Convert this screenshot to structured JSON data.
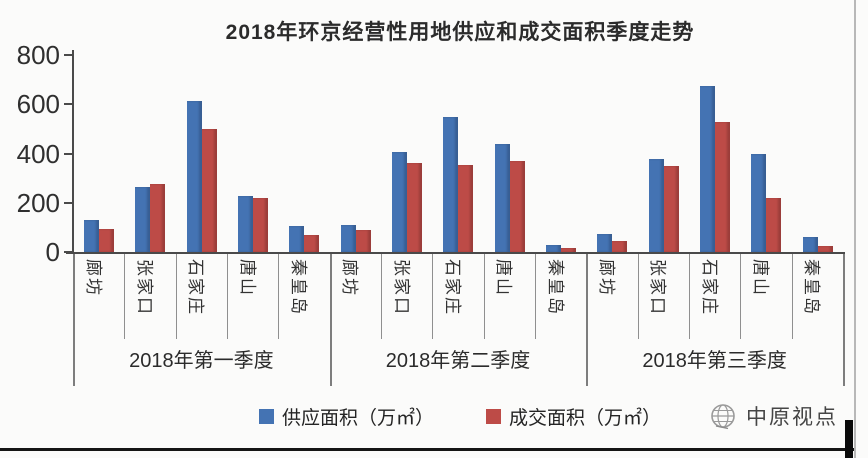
{
  "title": "2018年环京经营性用地供应和成交面积季度走势",
  "y_axis": {
    "ticks": [
      800,
      600,
      400,
      200,
      0
    ]
  },
  "legend": {
    "supply_label": "供应面积（万㎡）",
    "deal_label": "成交面积（万㎡）"
  },
  "watermark": {
    "brand": "中原视点"
  },
  "colors": {
    "supply": "#4473b3",
    "deal": "#bd4b47",
    "axis": "#4a4a4a"
  },
  "chart_data": {
    "type": "bar",
    "title": "2018年环京经营性用地供应和成交面积季度走势",
    "groups": [
      "2018年第一季度",
      "2018年第二季度",
      "2018年第三季度"
    ],
    "categories": [
      "廊坊",
      "张家口",
      "石家庄",
      "唐山",
      "秦皇岛"
    ],
    "series": [
      {
        "name": "供应面积（万㎡）",
        "color": "#4473b3",
        "values": [
          [
            130,
            265,
            615,
            228,
            105
          ],
          [
            110,
            405,
            550,
            440,
            30
          ],
          [
            75,
            378,
            675,
            398,
            62
          ]
        ]
      },
      {
        "name": "成交面积（万㎡）",
        "color": "#bd4b47",
        "values": [
          [
            95,
            275,
            500,
            220,
            70
          ],
          [
            90,
            360,
            355,
            370,
            15
          ],
          [
            45,
            350,
            530,
            220,
            25
          ]
        ]
      }
    ],
    "ylim": [
      0,
      800
    ],
    "grid": false,
    "legend_position": "bottom"
  }
}
